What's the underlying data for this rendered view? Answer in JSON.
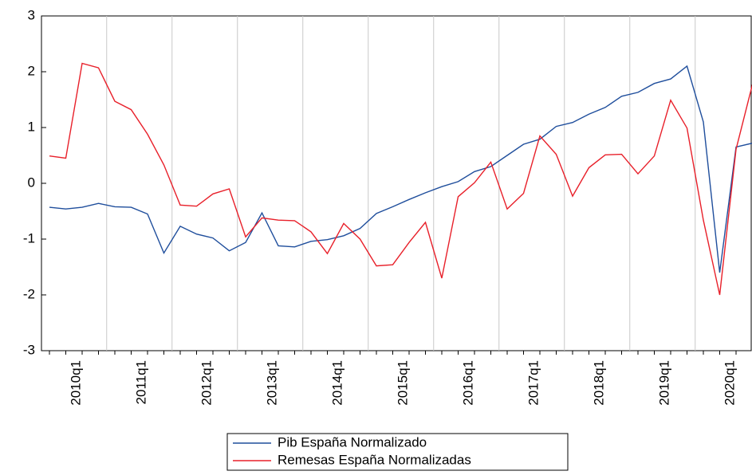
{
  "chart_data": {
    "type": "line",
    "categories": [
      null,
      null,
      "2010q1",
      null,
      null,
      null,
      "2011q1",
      null,
      null,
      null,
      "2012q1",
      null,
      null,
      null,
      "2013q1",
      null,
      null,
      null,
      "2014q1",
      null,
      null,
      null,
      "2015q1",
      null,
      null,
      null,
      "2016q1",
      null,
      null,
      null,
      "2017q1",
      null,
      null,
      null,
      "2018q1",
      null,
      null,
      null,
      "2019q1",
      null,
      null,
      null,
      "2020q1",
      null
    ],
    "series": [
      {
        "name": "Pib España Normalizado",
        "color": "#1f4e9c",
        "values": [
          -0.43,
          -0.46,
          -0.43,
          -0.36,
          -0.42,
          -0.43,
          -0.55,
          -1.25,
          -0.77,
          -0.91,
          -0.98,
          -1.21,
          -1.06,
          -0.53,
          -1.12,
          -1.14,
          -1.04,
          -1.01,
          -0.94,
          -0.81,
          -0.54,
          -0.42,
          -0.29,
          -0.17,
          -0.06,
          0.03,
          0.21,
          0.3,
          0.5,
          0.7,
          0.79,
          1.02,
          1.09,
          1.24,
          1.36,
          1.56,
          1.63,
          1.79,
          1.87,
          2.1,
          1.1,
          -1.6,
          0.65,
          0.72
        ]
      },
      {
        "name": "Remesas España Normalizadas",
        "color": "#e8202a",
        "values": [
          0.49,
          0.45,
          2.15,
          2.07,
          1.47,
          1.32,
          0.88,
          0.33,
          -0.39,
          -0.41,
          -0.19,
          -0.1,
          -0.96,
          -0.62,
          -0.66,
          -0.67,
          -0.87,
          -1.26,
          -0.72,
          -1.0,
          -1.48,
          -1.46,
          -1.06,
          -0.7,
          -1.7,
          -0.24,
          0.01,
          0.38,
          -0.46,
          -0.18,
          0.85,
          0.52,
          -0.23,
          0.28,
          0.51,
          0.52,
          0.17,
          0.49,
          1.49,
          0.99,
          -0.66,
          -2.0,
          0.61,
          1.77
        ]
      }
    ],
    "ylim": [
      -3,
      3
    ],
    "yticks": [
      -3,
      -2,
      -1,
      0,
      1,
      2,
      3
    ],
    "grid": true,
    "legend": "bottom"
  }
}
